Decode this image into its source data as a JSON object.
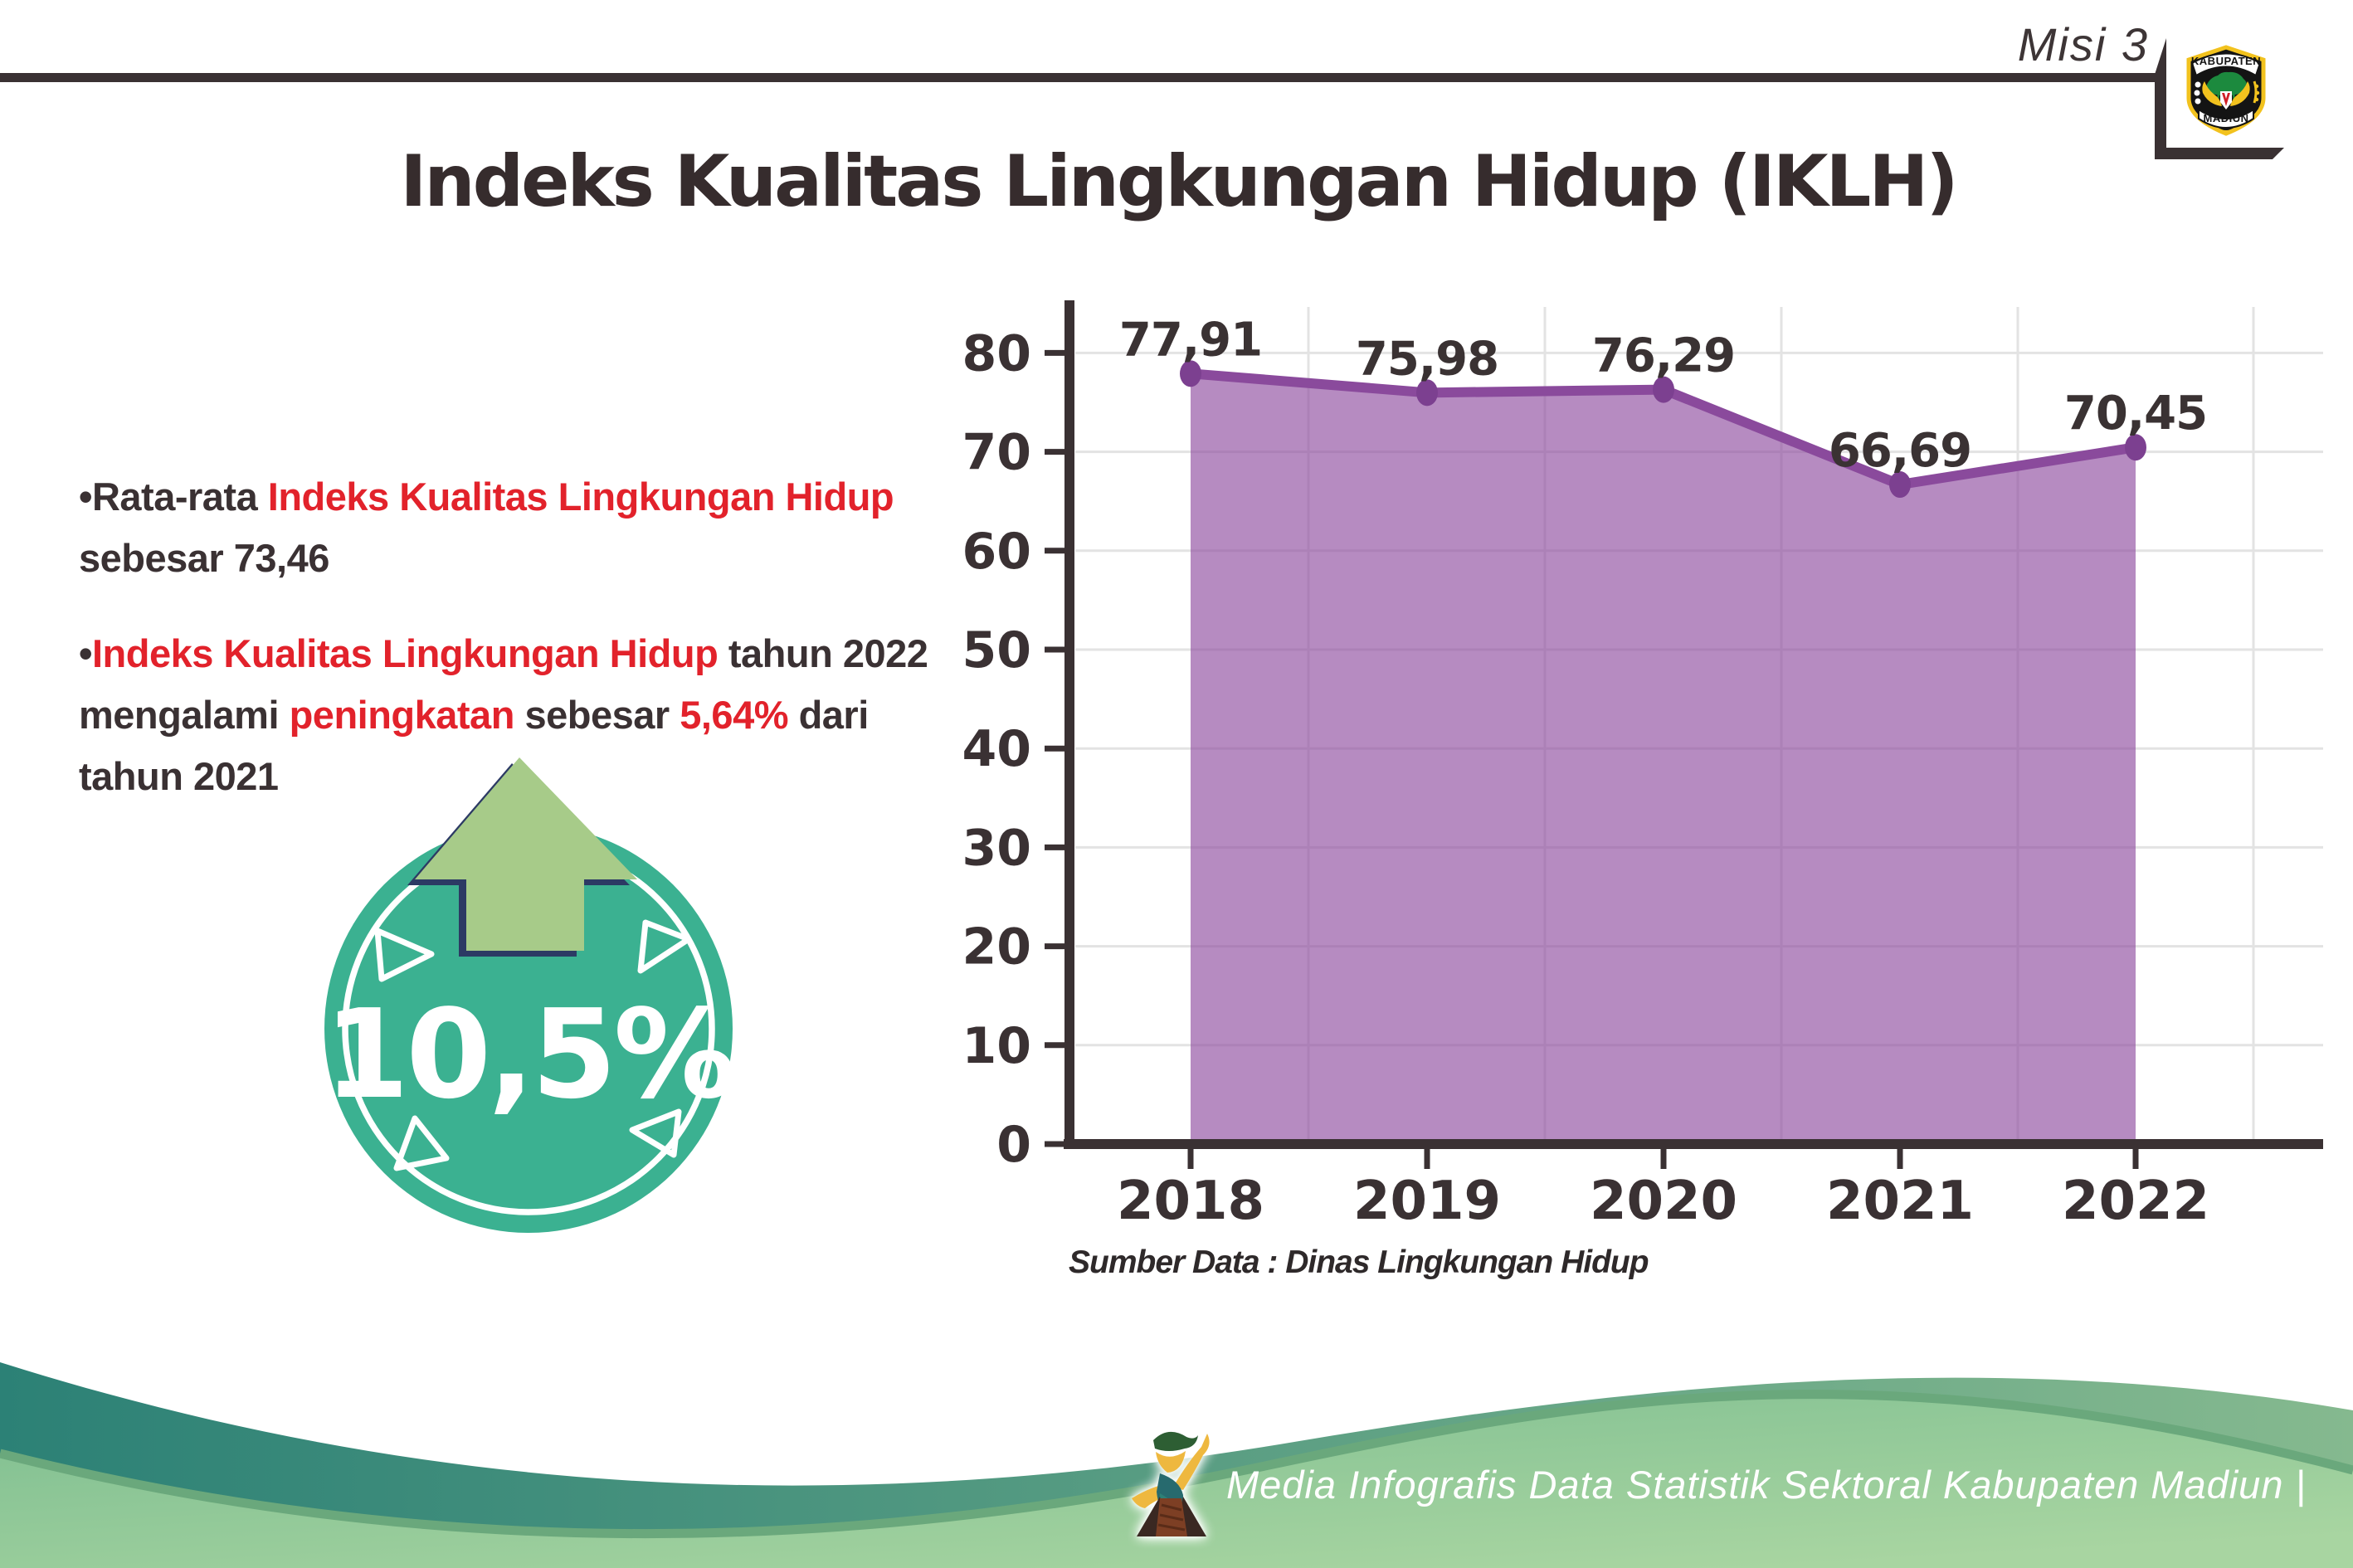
{
  "header": {
    "misi": "Misi 3",
    "title": "Indeks Kualitas Lingkungan Hidup (IKLH)"
  },
  "logo": {
    "top": "KABUPATEN",
    "bottom": "MADIUN"
  },
  "bullets": {
    "marker": "•",
    "b1": {
      "seg_a": "Rata-rata ",
      "seg_b": "Indeks Kualitas Lingkungan Hidup",
      "line2": "sebesar 73,46"
    },
    "b2": {
      "seg_a": "Indeks Kualitas Lingkungan Hidup",
      "seg_b": " tahun 2022",
      "line2_a": "mengalami ",
      "line2_b": "peningkatan",
      "line2_c": " sebesar ",
      "line2_d": "5,64%",
      "line2_e": " dari",
      "line3": "tahun 2021"
    }
  },
  "badge": {
    "value": "10,5%"
  },
  "chart_data": {
    "type": "area",
    "title": "",
    "xlabel": "",
    "ylabel": "",
    "categories": [
      "2018",
      "2019",
      "2020",
      "2021",
      "2022"
    ],
    "values": [
      77.91,
      75.98,
      76.29,
      66.69,
      70.45
    ],
    "labels": [
      "77,91",
      "75,98",
      "76,29",
      "66,69",
      "70,45"
    ],
    "yticks": [
      0,
      10,
      20,
      30,
      40,
      50,
      60,
      70,
      80
    ],
    "ylim": [
      0,
      85
    ],
    "grid": true,
    "legend": false
  },
  "source": {
    "text": "Sumber Data : Dinas Lingkungan Hidup"
  },
  "footer": {
    "text": "Media Infografis Data Statistik Sektoral Kabupaten Madiun |"
  },
  "colors": {
    "dark": "#3a3133",
    "red": "#e2222b",
    "purple_line": "#8a4a9c",
    "purple_fill": "#8f4d9f",
    "purple_marker": "#7c4090",
    "grid": "#e3e3e3",
    "teal": "#3bb191",
    "arrow_green": "#a7cb89",
    "navy": "#2c3a64",
    "footer_teal_dark": "#2c8176",
    "footer_teal_light": "#85b98f",
    "footer_green": "#7cbd90",
    "footer_green_light": "#a8d5a1",
    "footer_edge": "#6aa87c"
  }
}
